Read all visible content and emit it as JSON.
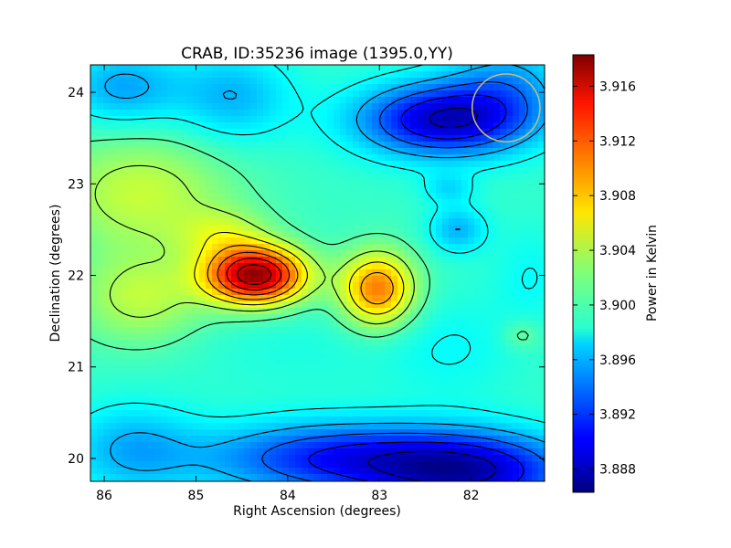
{
  "chart_data": {
    "type": "heatmap",
    "title": "CRAB, ID:35236 image (1395.0,YY)",
    "xlabel": "Right Ascension (degrees)",
    "ylabel": "Declination (degrees)",
    "xlim": [
      86.15,
      81.2
    ],
    "ylim": [
      19.75,
      24.3
    ],
    "xticks": [
      86,
      85,
      84,
      83,
      82
    ],
    "yticks": [
      20,
      21,
      22,
      23,
      24
    ],
    "grid": false,
    "colorbar": {
      "label": "Power in Kelvin",
      "range": [
        3.8863,
        3.9183
      ],
      "ticks": [
        "3.888",
        "3.892",
        "3.896",
        "3.900",
        "3.904",
        "3.908",
        "3.912",
        "3.916"
      ],
      "colormap": "jet"
    },
    "background_level": 3.9,
    "features": [
      {
        "ra": 84.35,
        "dec": 22.0,
        "sx": 0.38,
        "sy": 0.22,
        "amp": 0.0175
      },
      {
        "ra": 83.02,
        "dec": 21.85,
        "sx": 0.28,
        "sy": 0.28,
        "amp": 0.0105
      },
      {
        "ra": 85.6,
        "dec": 21.75,
        "sx": 0.5,
        "sy": 0.35,
        "amp": 0.0042
      },
      {
        "ra": 85.6,
        "dec": 22.9,
        "sx": 0.7,
        "sy": 0.45,
        "amp": 0.0045
      },
      {
        "ra": 84.7,
        "dec": 22.45,
        "sx": 0.35,
        "sy": 0.2,
        "amp": 0.0035
      },
      {
        "ra": 82.3,
        "dec": 23.7,
        "sx": 0.65,
        "sy": 0.28,
        "amp": -0.0115
      },
      {
        "ra": 81.6,
        "dec": 24.1,
        "sx": 0.45,
        "sy": 0.35,
        "amp": -0.004
      },
      {
        "ra": 83.5,
        "dec": 20.0,
        "sx": 1.0,
        "sy": 0.28,
        "amp": -0.0085
      },
      {
        "ra": 82.0,
        "dec": 19.85,
        "sx": 0.8,
        "sy": 0.3,
        "amp": -0.0105
      },
      {
        "ra": 85.7,
        "dec": 20.1,
        "sx": 0.5,
        "sy": 0.35,
        "amp": -0.004
      },
      {
        "ra": 85.8,
        "dec": 24.05,
        "sx": 0.45,
        "sy": 0.3,
        "amp": -0.0045
      },
      {
        "ra": 84.6,
        "dec": 23.95,
        "sx": 0.45,
        "sy": 0.35,
        "amp": -0.004
      },
      {
        "ra": 82.15,
        "dec": 22.5,
        "sx": 0.22,
        "sy": 0.18,
        "amp": -0.004
      },
      {
        "ra": 82.25,
        "dec": 22.95,
        "sx": 0.2,
        "sy": 0.12,
        "amp": -0.0025
      },
      {
        "ra": 82.2,
        "dec": 21.2,
        "sx": 0.5,
        "sy": 0.4,
        "amp": -0.0015
      },
      {
        "ra": 81.45,
        "dec": 21.35,
        "sx": 0.15,
        "sy": 0.12,
        "amp": 0.002
      },
      {
        "ra": 81.35,
        "dec": 22.0,
        "sx": 0.3,
        "sy": 0.4,
        "amp": -0.0015
      },
      {
        "ra": 83.9,
        "dec": 21.2,
        "sx": 0.9,
        "sy": 0.35,
        "amp": -0.0008
      }
    ],
    "contour_levels": [
      3.8885,
      3.891,
      3.8935,
      3.896,
      3.8985,
      3.901,
      3.9035,
      3.906,
      3.9085,
      3.911,
      3.9135,
      3.916
    ],
    "beam_circle": {
      "ra": 81.62,
      "dec": 23.83,
      "radius_deg": 0.37,
      "color": "#c8c078"
    }
  }
}
